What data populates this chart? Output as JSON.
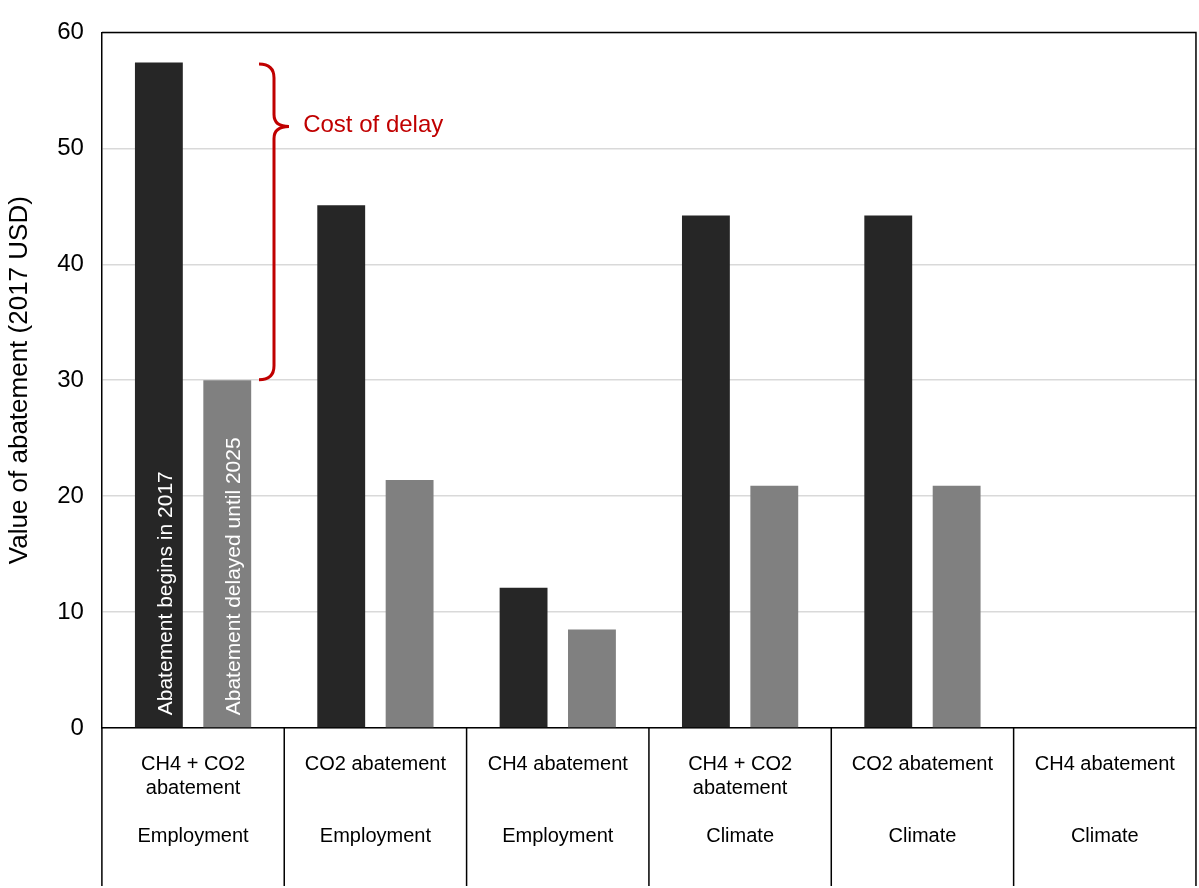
{
  "chart_data": {
    "type": "bar",
    "ylabel": "Value of abatement (2017 USD)",
    "categories": [
      "CH4 + CO2 abatement\nEmployment",
      "CO2 abatement\nEmployment",
      "CH4 abatement\nEmployment",
      "CH4 + CO2 abatement\nClimate",
      "CO2 abatement\nClimate",
      "CH4 abatement\nClimate"
    ],
    "series": [
      {
        "name": "Abatement begins in 2017",
        "color": "#262626",
        "values": [
          57.4,
          45.1,
          12.1,
          44.2,
          44.2,
          null
        ]
      },
      {
        "name": "Abatement delayed until 2025",
        "color": "#808080",
        "values": [
          30,
          21.4,
          8.5,
          20.9,
          20.9,
          null
        ]
      }
    ],
    "ylim": [
      0,
      60
    ],
    "yticks": [
      0,
      10,
      20,
      30,
      40,
      50,
      60
    ],
    "grid": "y",
    "legend": false,
    "annotations": [
      "Cost of delay"
    ]
  }
}
